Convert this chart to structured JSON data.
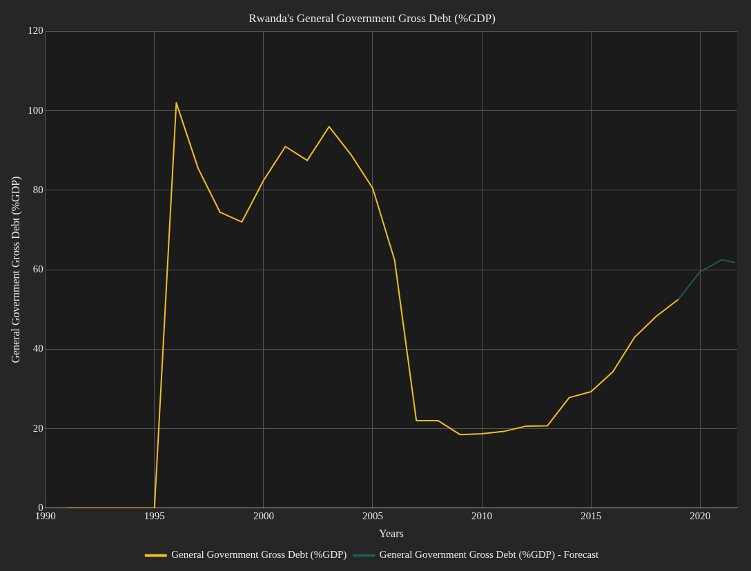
{
  "chart_data": {
    "type": "line",
    "title": "Rwanda's General Government Gross Debt (%GDP)",
    "xlabel": "Years",
    "ylabel": "General Government Gross Debt (%GDP)",
    "series": [
      {
        "name": "General Government Gross Debt (%GDP)",
        "color": "#f2c01e",
        "x": [
          1991,
          1992,
          1993,
          1994,
          1995,
          1996,
          1997,
          1998,
          1999,
          2000,
          2001,
          2002,
          2003,
          2004,
          2005,
          2006,
          2007,
          2008,
          2009,
          2010,
          2011,
          2012,
          2013,
          2014,
          2015,
          2016,
          2017,
          2018,
          2019
        ],
        "values": [
          0,
          0,
          0,
          0,
          0,
          102,
          85.5,
          74.5,
          72,
          82.5,
          91,
          87.5,
          96,
          89,
          80.5,
          62.5,
          22,
          22,
          18.5,
          18.7,
          19.3,
          20.6,
          20.7,
          27.8,
          29.3,
          34.3,
          43,
          48.3,
          52.5
        ]
      },
      {
        "name": "General Government Gross Debt (%GDP) - Forecast",
        "color": "#1f5a56",
        "x": [
          2019,
          2020,
          2021,
          2021.6
        ],
        "values": [
          52.5,
          59.5,
          62.5,
          61.8
        ]
      }
    ],
    "xlim": [
      1990,
      2021.7
    ],
    "xticks": [
      1990,
      1995,
      2000,
      2005,
      2010,
      2015,
      2020
    ],
    "ylim": [
      0,
      120
    ],
    "yticks": [
      0,
      20,
      40,
      60,
      80,
      100,
      120
    ],
    "grid": true,
    "legend": "bottom",
    "marker": "none",
    "line_style": "solid"
  }
}
